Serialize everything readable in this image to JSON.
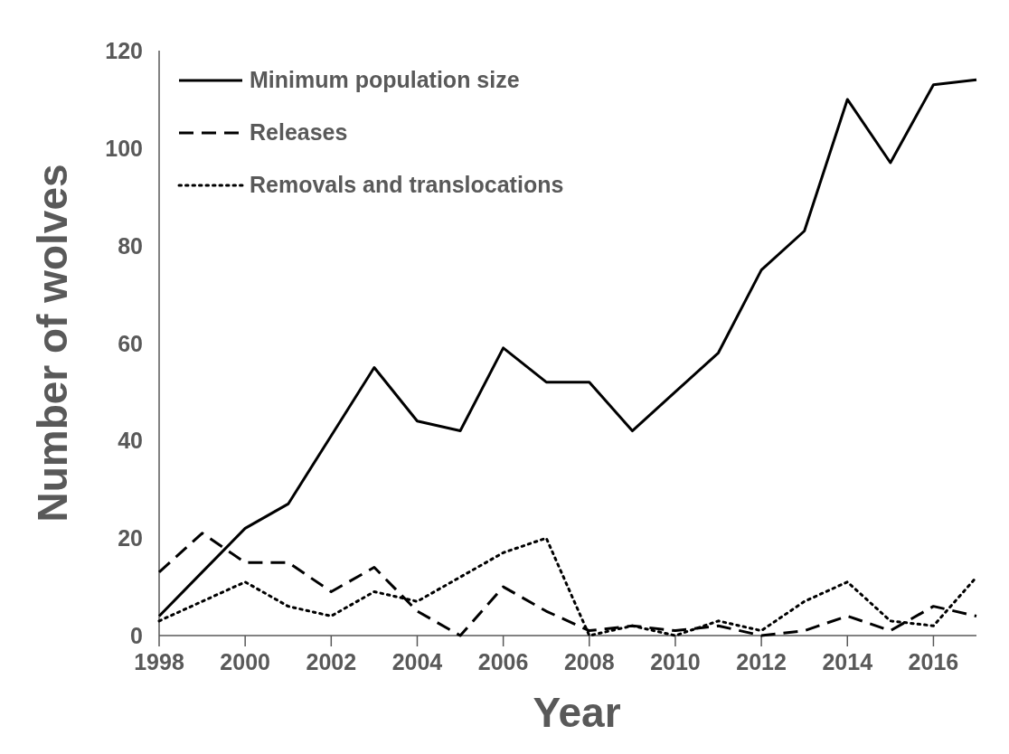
{
  "chart_data": {
    "type": "line",
    "xlabel": "Year",
    "ylabel": "Number of wolves",
    "x": [
      1998,
      1999,
      2000,
      2001,
      2002,
      2003,
      2004,
      2005,
      2006,
      2007,
      2008,
      2009,
      2010,
      2011,
      2012,
      2013,
      2014,
      2015,
      2016,
      2017
    ],
    "series": [
      {
        "name": "Minimum population size",
        "color": "#000000",
        "line_style": "solid",
        "values": [
          4,
          13,
          22,
          27,
          41,
          55,
          44,
          42,
          59,
          52,
          52,
          42,
          50,
          58,
          75,
          83,
          110,
          97,
          113,
          114
        ]
      },
      {
        "name": "Releases",
        "color": "#000000",
        "line_style": "dashed",
        "values": [
          13,
          21,
          15,
          15,
          9,
          14,
          5,
          0,
          10,
          5,
          1,
          2,
          1,
          2,
          0,
          1,
          4,
          1,
          6,
          4
        ]
      },
      {
        "name": "Removals and translocations",
        "color": "#000000",
        "line_style": "dotted",
        "values": [
          3,
          7,
          11,
          6,
          4,
          9,
          7,
          12,
          17,
          20,
          0,
          2,
          0,
          3,
          1,
          7,
          11,
          3,
          2,
          12
        ]
      }
    ],
    "xlim": [
      1998,
      2017
    ],
    "xticks": [
      1998,
      2000,
      2002,
      2004,
      2006,
      2008,
      2010,
      2012,
      2014,
      2016
    ],
    "ylim": [
      0,
      120
    ],
    "yticks": [
      0,
      20,
      40,
      60,
      80,
      100,
      120
    ],
    "grid": false,
    "legend": "top left",
    "marker": "none"
  }
}
